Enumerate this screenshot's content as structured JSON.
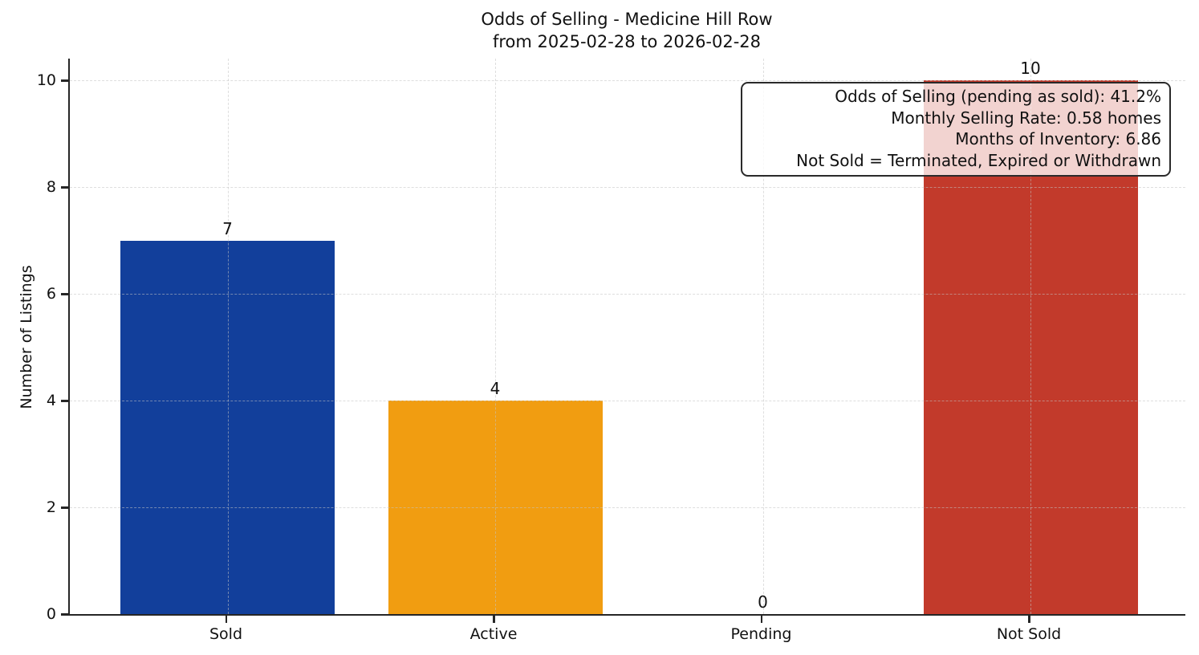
{
  "chart_data": {
    "type": "bar",
    "title": "Odds of Selling - Medicine Hill Row",
    "subtitle": "from 2025-02-28 to 2026-02-28",
    "xlabel": "",
    "ylabel": "Number of Listings",
    "categories": [
      "Sold",
      "Active",
      "Pending",
      "Not Sold"
    ],
    "values": [
      7,
      4,
      0,
      10
    ],
    "bar_colors": [
      "#123f9b",
      "#f19d11",
      null,
      "#c23a2b"
    ],
    "value_labels": [
      "7",
      "4",
      "0",
      "10"
    ],
    "yticks": [
      0,
      2,
      4,
      6,
      8,
      10
    ],
    "ylim": [
      0,
      10.4
    ],
    "grid": true,
    "grid_style": "dashed",
    "legend": "none",
    "annotation": {
      "position": "top-right",
      "lines": [
        "Odds of Selling (pending as sold): 41.2%",
        "Monthly Selling Rate: 0.58 homes",
        "Months of Inventory: 6.86",
        "Not Sold = Terminated, Expired or Withdrawn"
      ]
    },
    "colors": {
      "sold": "#123f9b",
      "active": "#f19d11",
      "not_sold": "#c23a2b",
      "axis": "#262626",
      "grid": "#c3c3c3"
    }
  }
}
